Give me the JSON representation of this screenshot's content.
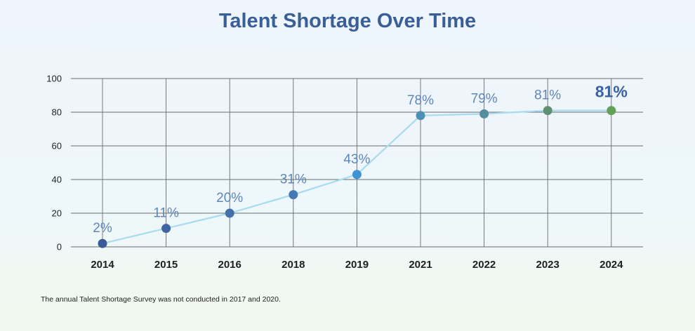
{
  "chart_data": {
    "type": "line",
    "title": "Talent Shortage Over Time",
    "categories": [
      "2014",
      "2015",
      "2016",
      "2018",
      "2019",
      "2021",
      "2022",
      "2023",
      "2024"
    ],
    "values": [
      2,
      11,
      20,
      31,
      43,
      78,
      79,
      81,
      81
    ],
    "data_labels": [
      "2%",
      "11%",
      "20%",
      "31%",
      "43%",
      "78%",
      "79%",
      "81%",
      "81%"
    ],
    "ylim": [
      0,
      100
    ],
    "yticks": [
      0,
      20,
      40,
      60,
      80,
      100
    ],
    "xlabel": "",
    "ylabel": "",
    "grid": true,
    "legend": "none",
    "colors": {
      "line": "#a8dbef",
      "grid": "#6b6b6b",
      "label": "#5f86b8",
      "highlight_label": "#3a62a2",
      "markers": [
        "#3a5a96",
        "#3e64a1",
        "#4170ab",
        "#4479b3",
        "#3f93d2",
        "#4d8fb5",
        "#568c9f",
        "#5d9172",
        "#63a05a"
      ]
    }
  },
  "footnote": "The annual Talent Shortage Survey was not conducted in 2017 and 2020."
}
